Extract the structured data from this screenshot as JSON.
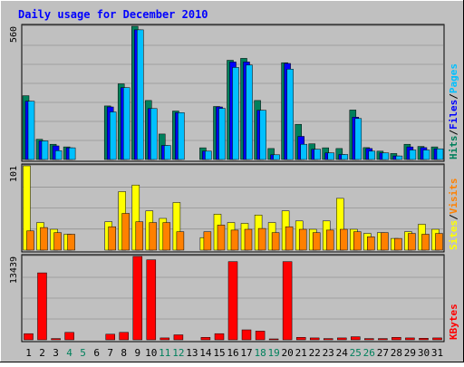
{
  "chart_data": {
    "type": "bar",
    "title": "Daily usage for December 2010",
    "categories": [
      "1",
      "2",
      "3",
      "4",
      "5",
      "6",
      "7",
      "8",
      "9",
      "10",
      "11",
      "12",
      "13",
      "14",
      "15",
      "16",
      "17",
      "18",
      "19",
      "20",
      "21",
      "22",
      "23",
      "24",
      "25",
      "26",
      "27",
      "28",
      "29",
      "30",
      "31"
    ],
    "weekend_days": [
      "4",
      "5",
      "11",
      "12",
      "18",
      "19",
      "25",
      "26"
    ],
    "colors": {
      "background": "#c0c0c0",
      "title": "#0000ff",
      "weekday_label": "#000000",
      "weekend_label": "#00805c",
      "hits": "#00805c",
      "files": "#0000ff",
      "pages": "#00c0ff",
      "visits": "#ff8000",
      "sites": "#ffff00",
      "kbytes": "#ff0000",
      "grid": "#808080"
    },
    "panels": [
      {
        "name": "top",
        "max_label": "560",
        "ylim": [
          0,
          560
        ],
        "legend": [
          {
            "label": "Hits",
            "color": "#00805c"
          },
          {
            "label": "Files",
            "color": "#0000ff"
          },
          {
            "label": "Pages",
            "color": "#00c0ff"
          }
        ],
        "series": [
          {
            "name": "Hits",
            "color": "#00805c",
            "values": [
              268,
              85,
              64,
              53,
              0,
              0,
              225,
              318,
              560,
              248,
              107,
              204,
              0,
              49,
              223,
              417,
              425,
              248,
              46,
              407,
              148,
              66,
              49,
              46,
              208,
              50,
              35,
              25,
              64,
              55,
              53
            ]
          },
          {
            "name": "Files",
            "color": "#0000ff",
            "values": [
              245,
              78,
              57,
              49,
              0,
              0,
              221,
              302,
              545,
              214,
              59,
              197,
              0,
              35,
              221,
              410,
              410,
              207,
              20,
              404,
              97,
              43,
              28,
              21,
              178,
              46,
              28,
              15,
              53,
              50,
              45
            ]
          },
          {
            "name": "Pages",
            "color": "#00c0ff",
            "values": [
              245,
              78,
              37,
              49,
              0,
              0,
              200,
              302,
              545,
              214,
              59,
              197,
              0,
              35,
              215,
              387,
              397,
              207,
              20,
              380,
              64,
              43,
              28,
              21,
              172,
              35,
              28,
              15,
              40,
              40,
              45
            ]
          }
        ]
      },
      {
        "name": "middle",
        "max_label": "101",
        "ylim": [
          0,
          101
        ],
        "legend": [
          {
            "label": "Sites",
            "color": "#ffff00"
          },
          {
            "label": "Visits",
            "color": "#ff8000"
          }
        ],
        "series": [
          {
            "name": "Sites",
            "color": "#ffff00",
            "values": [
              101,
              33,
              25,
              19,
              0,
              0,
              34,
              70,
              78,
              47,
              38,
              57,
              0,
              15,
              43,
              33,
              32,
              42,
              33,
              47,
              35,
              25,
              35,
              62,
              25,
              20,
              21,
              14,
              22,
              31,
              25
            ]
          },
          {
            "name": "Visits",
            "color": "#ff8000",
            "values": [
              23,
              27,
              21,
              19,
              0,
              0,
              28,
              44,
              34,
              33,
              33,
              22,
              0,
              22,
              30,
              24,
              25,
              26,
              21,
              28,
              25,
              21,
              24,
              25,
              22,
              16,
              21,
              14,
              20,
              19,
              20
            ]
          }
        ]
      },
      {
        "name": "bottom",
        "max_label": "13439",
        "ylim": [
          0,
          13439
        ],
        "legend": [
          {
            "label": "KBytes",
            "color": "#ff0000"
          }
        ],
        "series": [
          {
            "name": "KBytes",
            "color": "#ff0000",
            "values": [
              1000,
              10800,
              200,
              1200,
              0,
              0,
              900,
              1200,
              13439,
              12900,
              300,
              800,
              0,
              400,
              1000,
              12600,
              1600,
              1400,
              150,
              12600,
              400,
              300,
              200,
              300,
              500,
              200,
              200,
              400,
              300,
              250,
              300
            ]
          }
        ]
      }
    ]
  }
}
